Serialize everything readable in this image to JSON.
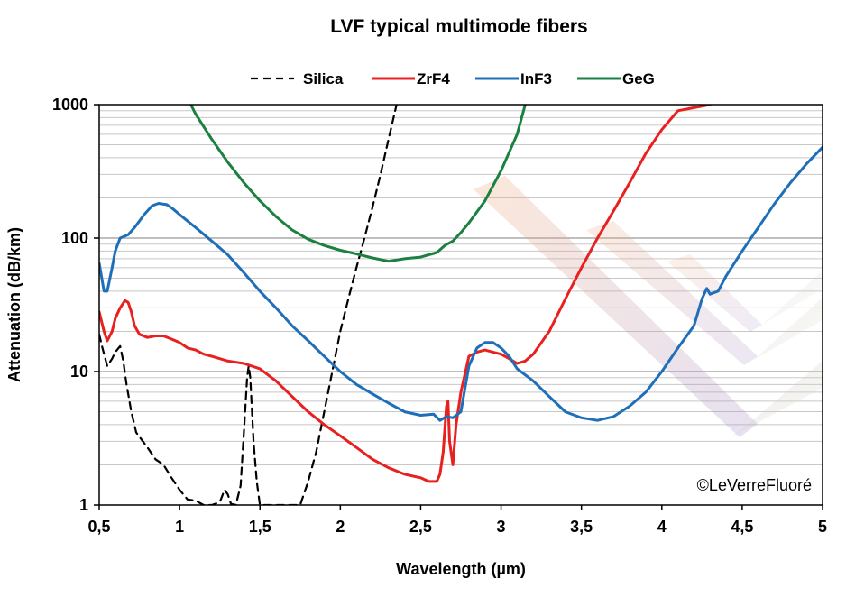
{
  "chart_data": {
    "type": "line",
    "title": "LVF typical multimode fibers",
    "xlabel": "Wavelength (µm)",
    "ylabel": "Attenuation (dB/km)",
    "xlim": [
      0.5,
      5
    ],
    "ylim": [
      1,
      1000
    ],
    "y_scale": "log",
    "x_ticks": [
      0.5,
      1,
      1.5,
      2,
      2.5,
      3,
      3.5,
      4,
      4.5,
      5
    ],
    "x_tick_labels": [
      "0,5",
      "1",
      "1,5",
      "2",
      "2,5",
      "3",
      "3,5",
      "4",
      "4,5",
      "5"
    ],
    "y_ticks": [
      1,
      10,
      100,
      1000
    ],
    "y_tick_labels": [
      "1",
      "10",
      "100",
      "1000"
    ],
    "grid": true,
    "legend_position": "top",
    "credit": "©LeVerreFluoré",
    "series": [
      {
        "name": "Silica",
        "color": "#000000",
        "dash": "dashed",
        "points": [
          [
            0.5,
            19
          ],
          [
            0.52,
            15
          ],
          [
            0.55,
            11
          ],
          [
            0.58,
            12.5
          ],
          [
            0.6,
            14
          ],
          [
            0.63,
            15.5
          ],
          [
            0.65,
            12
          ],
          [
            0.67,
            8
          ],
          [
            0.7,
            5
          ],
          [
            0.73,
            3.5
          ],
          [
            0.8,
            2.7
          ],
          [
            0.85,
            2.2
          ],
          [
            0.9,
            2
          ],
          [
            0.95,
            1.6
          ],
          [
            1.0,
            1.3
          ],
          [
            1.05,
            1.1
          ],
          [
            1.1,
            1.08
          ],
          [
            1.15,
            1.0
          ],
          [
            1.2,
            1.0
          ],
          [
            1.25,
            1.05
          ],
          [
            1.28,
            1.3
          ],
          [
            1.3,
            1.2
          ],
          [
            1.32,
            1.02
          ],
          [
            1.35,
            1.0
          ],
          [
            1.38,
            1.4
          ],
          [
            1.4,
            3.5
          ],
          [
            1.42,
            9
          ],
          [
            1.43,
            11
          ],
          [
            1.44,
            9
          ],
          [
            1.46,
            3
          ],
          [
            1.48,
            1.5
          ],
          [
            1.5,
            1.0
          ],
          [
            1.55,
            1.0
          ],
          [
            1.6,
            1.0
          ],
          [
            1.65,
            1.0
          ],
          [
            1.7,
            1.0
          ],
          [
            1.75,
            1.0
          ],
          [
            1.8,
            1.5
          ],
          [
            1.85,
            2.5
          ],
          [
            1.9,
            5
          ],
          [
            1.95,
            10
          ],
          [
            2.0,
            20
          ],
          [
            2.05,
            35
          ],
          [
            2.1,
            60
          ],
          [
            2.15,
            100
          ],
          [
            2.2,
            170
          ],
          [
            2.25,
            300
          ],
          [
            2.3,
            550
          ],
          [
            2.35,
            1000
          ]
        ]
      },
      {
        "name": "ZrF4",
        "color": "#e8201f",
        "dash": "solid",
        "points": [
          [
            0.5,
            28
          ],
          [
            0.53,
            20
          ],
          [
            0.55,
            17
          ],
          [
            0.58,
            20
          ],
          [
            0.6,
            25
          ],
          [
            0.63,
            30
          ],
          [
            0.66,
            34
          ],
          [
            0.68,
            33
          ],
          [
            0.7,
            28
          ],
          [
            0.72,
            22
          ],
          [
            0.75,
            19
          ],
          [
            0.8,
            18
          ],
          [
            0.85,
            18.5
          ],
          [
            0.9,
            18.5
          ],
          [
            0.95,
            17.5
          ],
          [
            1.0,
            16.5
          ],
          [
            1.05,
            15
          ],
          [
            1.1,
            14.5
          ],
          [
            1.15,
            13.5
          ],
          [
            1.2,
            13
          ],
          [
            1.25,
            12.5
          ],
          [
            1.3,
            12
          ],
          [
            1.4,
            11.5
          ],
          [
            1.5,
            10.5
          ],
          [
            1.6,
            8.5
          ],
          [
            1.7,
            6.5
          ],
          [
            1.8,
            5
          ],
          [
            1.9,
            4
          ],
          [
            2.0,
            3.3
          ],
          [
            2.1,
            2.7
          ],
          [
            2.2,
            2.2
          ],
          [
            2.3,
            1.9
          ],
          [
            2.4,
            1.7
          ],
          [
            2.5,
            1.6
          ],
          [
            2.55,
            1.5
          ],
          [
            2.6,
            1.5
          ],
          [
            2.62,
            1.7
          ],
          [
            2.64,
            2.5
          ],
          [
            2.66,
            5.5
          ],
          [
            2.67,
            6
          ],
          [
            2.68,
            3
          ],
          [
            2.7,
            2
          ],
          [
            2.72,
            4
          ],
          [
            2.75,
            7
          ],
          [
            2.8,
            13
          ],
          [
            2.85,
            14
          ],
          [
            2.9,
            14.5
          ],
          [
            2.95,
            14
          ],
          [
            3.0,
            13.5
          ],
          [
            3.05,
            12.5
          ],
          [
            3.1,
            11.5
          ],
          [
            3.15,
            12
          ],
          [
            3.2,
            13.5
          ],
          [
            3.3,
            20
          ],
          [
            3.4,
            35
          ],
          [
            3.5,
            60
          ],
          [
            3.6,
            100
          ],
          [
            3.7,
            160
          ],
          [
            3.8,
            260
          ],
          [
            3.9,
            430
          ],
          [
            4.0,
            650
          ],
          [
            4.1,
            900
          ],
          [
            4.3,
            1000
          ]
        ]
      },
      {
        "name": "InF3",
        "color": "#1f6fb8",
        "dash": "solid",
        "points": [
          [
            0.5,
            65
          ],
          [
            0.53,
            40
          ],
          [
            0.55,
            40
          ],
          [
            0.58,
            60
          ],
          [
            0.6,
            80
          ],
          [
            0.63,
            100
          ],
          [
            0.68,
            106
          ],
          [
            0.72,
            120
          ],
          [
            0.78,
            150
          ],
          [
            0.83,
            175
          ],
          [
            0.87,
            182
          ],
          [
            0.92,
            178
          ],
          [
            0.96,
            165
          ],
          [
            1.0,
            150
          ],
          [
            1.1,
            120
          ],
          [
            1.2,
            95
          ],
          [
            1.3,
            75
          ],
          [
            1.4,
            55
          ],
          [
            1.5,
            40
          ],
          [
            1.6,
            30
          ],
          [
            1.7,
            22
          ],
          [
            1.8,
            17
          ],
          [
            1.9,
            13
          ],
          [
            2.0,
            10
          ],
          [
            2.1,
            8
          ],
          [
            2.2,
            6.8
          ],
          [
            2.3,
            5.8
          ],
          [
            2.4,
            5
          ],
          [
            2.5,
            4.7
          ],
          [
            2.58,
            4.8
          ],
          [
            2.62,
            4.3
          ],
          [
            2.66,
            4.6
          ],
          [
            2.7,
            4.5
          ],
          [
            2.75,
            5
          ],
          [
            2.8,
            11
          ],
          [
            2.85,
            15
          ],
          [
            2.9,
            16.5
          ],
          [
            2.95,
            16.5
          ],
          [
            3.0,
            15
          ],
          [
            3.05,
            13
          ],
          [
            3.1,
            10.5
          ],
          [
            3.2,
            8.5
          ],
          [
            3.3,
            6.5
          ],
          [
            3.4,
            5
          ],
          [
            3.5,
            4.5
          ],
          [
            3.6,
            4.3
          ],
          [
            3.7,
            4.6
          ],
          [
            3.8,
            5.5
          ],
          [
            3.9,
            7
          ],
          [
            4.0,
            10
          ],
          [
            4.1,
            15
          ],
          [
            4.2,
            22
          ],
          [
            4.25,
            35
          ],
          [
            4.28,
            42
          ],
          [
            4.3,
            38
          ],
          [
            4.35,
            40
          ],
          [
            4.4,
            52
          ],
          [
            4.5,
            80
          ],
          [
            4.6,
            120
          ],
          [
            4.7,
            180
          ],
          [
            4.8,
            260
          ],
          [
            4.9,
            360
          ],
          [
            5.0,
            480
          ]
        ]
      },
      {
        "name": "GeG",
        "color": "#1b8040",
        "dash": "solid",
        "points": [
          [
            1.07,
            1000
          ],
          [
            1.1,
            850
          ],
          [
            1.2,
            550
          ],
          [
            1.3,
            370
          ],
          [
            1.4,
            260
          ],
          [
            1.5,
            190
          ],
          [
            1.6,
            145
          ],
          [
            1.7,
            115
          ],
          [
            1.8,
            98
          ],
          [
            1.9,
            88
          ],
          [
            2.0,
            81
          ],
          [
            2.1,
            76
          ],
          [
            2.2,
            71
          ],
          [
            2.3,
            67
          ],
          [
            2.4,
            70
          ],
          [
            2.5,
            72
          ],
          [
            2.55,
            75
          ],
          [
            2.6,
            78
          ],
          [
            2.65,
            88
          ],
          [
            2.7,
            95
          ],
          [
            2.75,
            110
          ],
          [
            2.8,
            130
          ],
          [
            2.9,
            190
          ],
          [
            3.0,
            320
          ],
          [
            3.1,
            600
          ],
          [
            3.15,
            1000
          ]
        ]
      }
    ]
  }
}
